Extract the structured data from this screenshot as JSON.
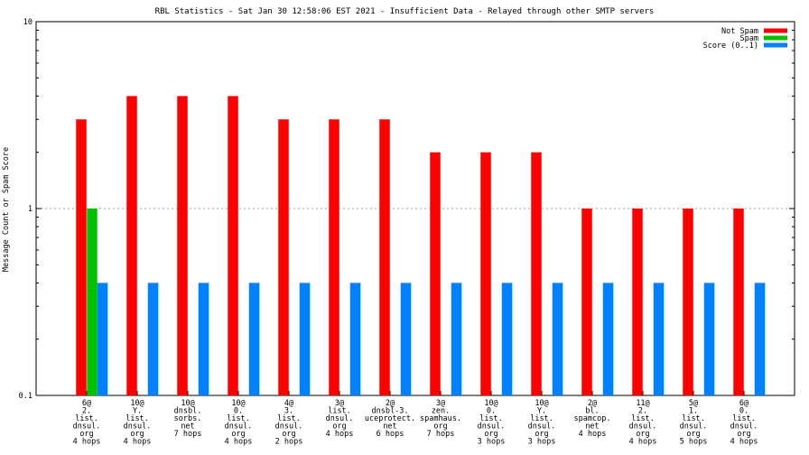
{
  "chart_data": {
    "type": "bar",
    "title": "RBL Statistics - Sat Jan 30 12:58:06 EST 2021 - Insufficient Data - Relayed through other SMTP servers",
    "xlabel": "",
    "ylabel": "Message Count or Spam Score",
    "yscale": "log",
    "ylim": [
      0.1,
      10
    ],
    "yticks": [
      "0.1",
      "1",
      "10"
    ],
    "grid": "horizontal dotted at 1",
    "legend_position": "top-right",
    "categories": [
      [
        "6@",
        "2.",
        "list.",
        "dnsul.",
        "org",
        "4 hops"
      ],
      [
        "10@",
        "Y.",
        "list.",
        "dnsul.",
        "org",
        "4 hops"
      ],
      [
        "10@",
        "dnsbl.",
        "sorbs.",
        "net",
        "7 hops"
      ],
      [
        "10@",
        "0.",
        "list.",
        "dnsul.",
        "org",
        "4 hops"
      ],
      [
        "4@",
        "3.",
        "list.",
        "dnsul.",
        "org",
        "2 hops"
      ],
      [
        "3@",
        "list.",
        "dnsul.",
        "org",
        "4 hops"
      ],
      [
        "2@",
        "dnsbl-3.",
        "uceprotect.",
        "net",
        "6 hops"
      ],
      [
        "3@",
        "zen.",
        "spamhaus.",
        "org",
        "7 hops"
      ],
      [
        "10@",
        "0.",
        "list.",
        "dnsul.",
        "org",
        "3 hops"
      ],
      [
        "10@",
        "Y.",
        "list.",
        "dnsul.",
        "org",
        "3 hops"
      ],
      [
        "2@",
        "bl.",
        "spamcop.",
        "net",
        "4 hops"
      ],
      [
        "11@",
        "2.",
        "list.",
        "dnsul.",
        "org",
        "4 hops"
      ],
      [
        "5@",
        "1.",
        "list.",
        "dnsul.",
        "org",
        "5 hops"
      ],
      [
        "6@",
        "0.",
        "list.",
        "dnsul.",
        "org",
        "4 hops"
      ]
    ],
    "series": [
      {
        "name": "Not Spam",
        "color": "#ff0000",
        "values": [
          3,
          4,
          4,
          4,
          3,
          3,
          3,
          2,
          2,
          2,
          1,
          1,
          1,
          1
        ]
      },
      {
        "name": "Spam",
        "color": "#00c000",
        "values": [
          1,
          null,
          null,
          null,
          null,
          null,
          null,
          null,
          null,
          null,
          null,
          null,
          null,
          null
        ]
      },
      {
        "name": "Score (0..1)",
        "color": "#0080ff",
        "values": [
          0.4,
          0.4,
          0.4,
          0.4,
          0.4,
          0.4,
          0.4,
          0.4,
          0.4,
          0.4,
          0.4,
          0.4,
          0.4,
          0.4
        ]
      }
    ]
  }
}
